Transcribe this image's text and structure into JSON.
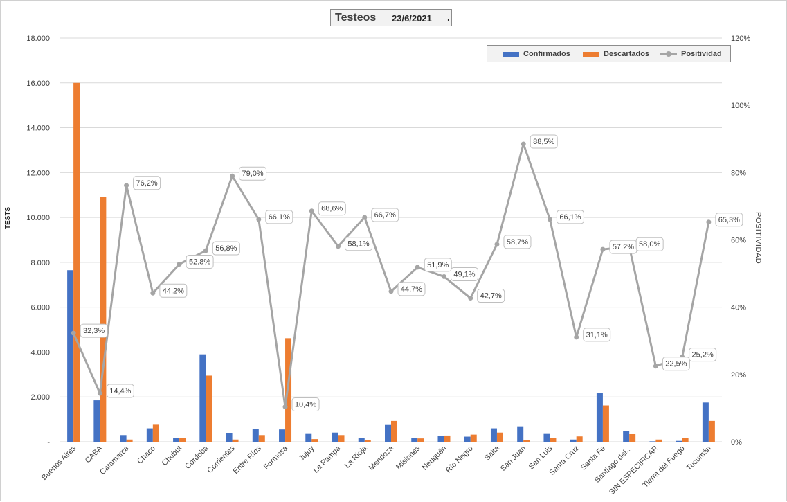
{
  "chart_data": {
    "type": "bar",
    "title": "Testeos",
    "date_label": "23/6/2021",
    "title_suffix": ".",
    "ylabel": "TESTS",
    "y2label": "POSITIVIDAD",
    "ylim": [
      0,
      18000
    ],
    "y2lim": [
      0,
      120
    ],
    "yticks": [
      "-",
      "2.000",
      "4.000",
      "6.000",
      "8.000",
      "10.000",
      "12.000",
      "14.000",
      "16.000",
      "18.000"
    ],
    "y2ticks": [
      "0%",
      "20%",
      "40%",
      "60%",
      "80%",
      "100%",
      "120%"
    ],
    "grid": true,
    "legend_position": "top-right",
    "categories": [
      "Buenos Aires",
      "CABA",
      "Catamarca",
      "Chaco",
      "Chubut",
      "Córdoba",
      "Corrientes",
      "Entre Ríos",
      "Formosa",
      "Jujuy",
      "La Pampa",
      "La Rioja",
      "Mendoza",
      "Misiones",
      "Neuquén",
      "Río Negro",
      "Salta",
      "San Juan",
      "San Luis",
      "Santa Cruz",
      "Santa Fe",
      "Santiago del...",
      "SIN ESPECIFICAR",
      "Tierra del Fuego",
      "Tucumán"
    ],
    "series": [
      {
        "name": "Confirmados",
        "type": "bar",
        "color": "#4472c4",
        "values": [
          7650,
          1850,
          300,
          600,
          180,
          3900,
          400,
          580,
          550,
          350,
          410,
          160,
          750,
          160,
          250,
          230,
          600,
          690,
          350,
          100,
          2180,
          470,
          20,
          40,
          1750
        ]
      },
      {
        "name": "Descartados",
        "type": "bar",
        "color": "#ed7d31",
        "values": [
          16000,
          10900,
          100,
          760,
          160,
          2950,
          100,
          300,
          4620,
          120,
          300,
          80,
          930,
          150,
          280,
          320,
          410,
          70,
          160,
          240,
          1620,
          340,
          100,
          170,
          930
        ]
      },
      {
        "name": "Positividad",
        "type": "line",
        "axis": "secondary",
        "color": "#a5a5a5",
        "values": [
          32.3,
          14.4,
          76.2,
          44.2,
          52.8,
          56.8,
          79.0,
          66.1,
          10.4,
          68.6,
          58.1,
          66.7,
          44.7,
          51.9,
          49.1,
          42.7,
          58.7,
          88.5,
          66.1,
          31.1,
          57.2,
          58.0,
          22.5,
          25.2,
          65.3
        ],
        "labels": [
          "32,3%",
          "14,4%",
          "76,2%",
          "44,2%",
          "52,8%",
          "56,8%",
          "79,0%",
          "66,1%",
          "10,4%",
          "68,6%",
          "58,1%",
          "66,7%",
          "44,7%",
          "51,9%",
          "49,1%",
          "42,7%",
          "58,7%",
          "88,5%",
          "66,1%",
          "31,1%",
          "57,2%",
          "58,0%",
          "22,5%",
          "25,2%",
          "65,3%"
        ]
      }
    ]
  }
}
